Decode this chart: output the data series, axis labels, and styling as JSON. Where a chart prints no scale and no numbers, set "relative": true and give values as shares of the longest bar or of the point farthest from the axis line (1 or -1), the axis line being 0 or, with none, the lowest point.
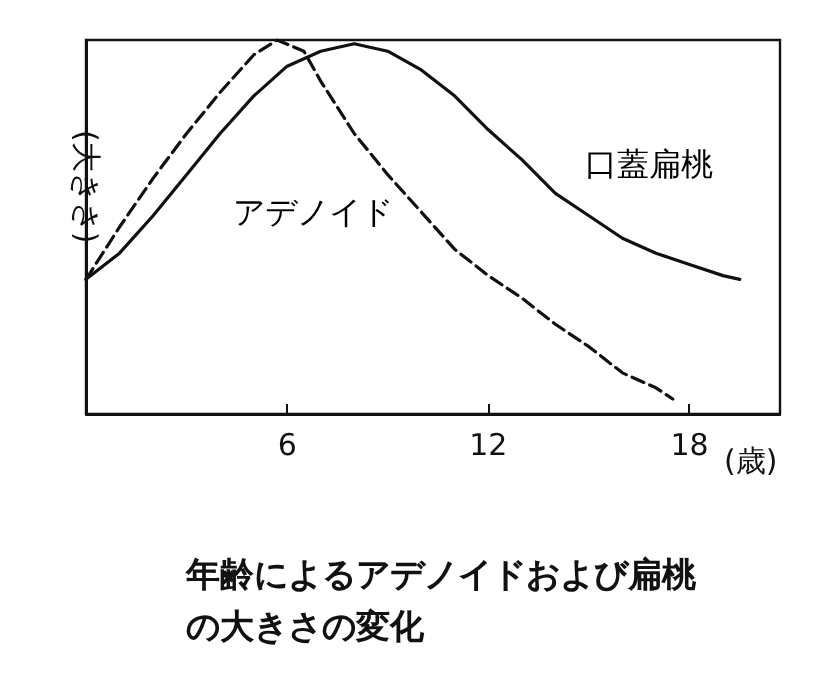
{
  "chart_data": {
    "type": "line",
    "relative": true,
    "ylabel": "(大きさ)",
    "xlabel": "(歳)",
    "xlim": [
      0,
      20.7
    ],
    "xticks": [
      6,
      12,
      18
    ],
    "grid": false,
    "legend": false,
    "marker": "none",
    "annotations": [
      "年齢によるアデノイドおよび扁桃の大きさの変化"
    ],
    "series": [
      {
        "name": "口蓋扁桃",
        "color": "#111111",
        "line_style": "solid",
        "x": [
          0,
          1,
          2,
          3,
          4,
          5,
          6,
          7,
          8,
          9,
          10,
          11,
          12,
          13,
          14,
          15,
          16,
          17,
          18,
          19,
          19.5
        ],
        "values": [
          0.36,
          0.43,
          0.53,
          0.64,
          0.75,
          0.85,
          0.93,
          0.97,
          0.99,
          0.97,
          0.92,
          0.85,
          0.76,
          0.68,
          0.59,
          0.53,
          0.47,
          0.43,
          0.4,
          0.37,
          0.36
        ]
      },
      {
        "name": "アデノイド",
        "color": "#111111",
        "line_style": "dashed",
        "x": [
          0,
          1,
          2,
          3,
          4,
          5,
          5.7,
          6.5,
          7,
          8,
          9,
          10,
          11,
          12,
          13,
          14,
          15,
          16,
          17,
          17.5
        ],
        "values": [
          0.36,
          0.5,
          0.63,
          0.75,
          0.86,
          0.96,
          1,
          0.97,
          0.89,
          0.75,
          0.64,
          0.54,
          0.44,
          0.37,
          0.31,
          0.24,
          0.18,
          0.11,
          0.07,
          0.04
        ]
      }
    ]
  }
}
